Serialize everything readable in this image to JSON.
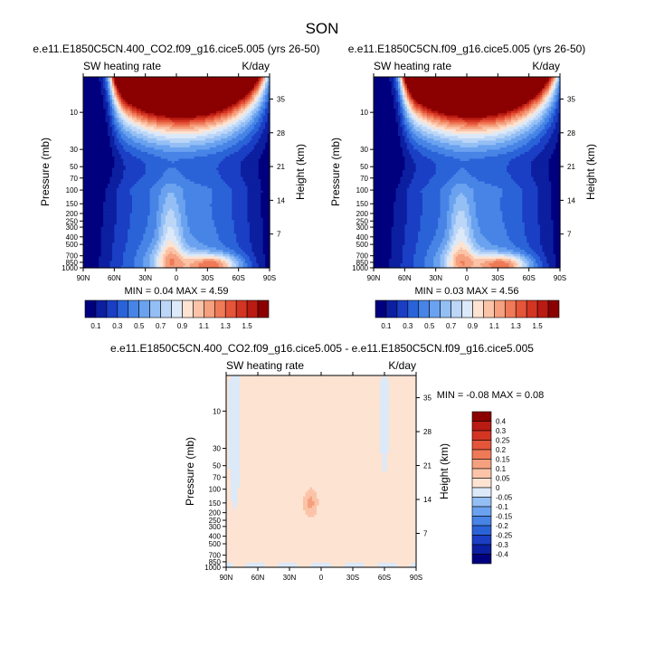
{
  "page_title": "SON",
  "palettes": {
    "sw": [
      "#00007f",
      "#0c1fa0",
      "#1a3ec4",
      "#2a63d8",
      "#4784e6",
      "#6aa2ef",
      "#94bff5",
      "#bcd6f8",
      "#dce9f8",
      "#fde3d2",
      "#fbc4a8",
      "#f5a07f",
      "#ef7a58",
      "#e4553a",
      "#d33522",
      "#ba1b12",
      "#8b0000"
    ],
    "diff": [
      "#00007f",
      "#0c1fa0",
      "#1a3ec4",
      "#2a63d8",
      "#4784e6",
      "#6aa2ef",
      "#94bff5",
      "#dce9f8",
      "#fde3d2",
      "#fbc4a8",
      "#f5a07f",
      "#ef7a58",
      "#e4553a",
      "#d33522",
      "#ba1b12",
      "#8b0000"
    ]
  },
  "chart_data": [
    {
      "id": "panel1",
      "type": "heatmap",
      "title": "e.e11.E1850C5CN.400_CO2.f09_g16.cice5.005 (yrs 26-50)",
      "left_label": "SW heating rate",
      "right_label": "K/day",
      "ylabel": "Pressure (mb)",
      "ylabel_right": "Height (km)",
      "xticks": [
        "90N",
        "60N",
        "30N",
        "0",
        "30S",
        "60S",
        "90S"
      ],
      "yticks": [
        "10",
        "30",
        "50",
        "70",
        "100",
        "150",
        "200",
        "250",
        "300",
        "400",
        "500",
        "700",
        "850",
        "1000"
      ],
      "height_ticks": [
        "35",
        "28",
        "21",
        "14",
        "7"
      ],
      "x_range": [
        -90,
        90
      ],
      "p_range": [
        1000,
        3.5
      ],
      "stats": "MIN =  0.04  MAX =  4.59",
      "colorbar_labels": [
        "0.1",
        "0.3",
        "0.5",
        "0.7",
        "0.9",
        "1.1",
        "1.3",
        "1.5"
      ],
      "colorbar_levels": [
        0.1,
        0.2,
        0.3,
        0.4,
        0.5,
        0.6,
        0.7,
        0.8,
        0.9,
        1.0,
        1.1,
        1.2,
        1.3,
        1.4,
        1.5,
        1.6
      ]
    },
    {
      "id": "panel2",
      "type": "heatmap",
      "title": "e.e11.E1850C5CN.f09_g16.cice5.005 (yrs 26-50)",
      "left_label": "SW heating rate",
      "right_label": "K/day",
      "ylabel": "Pressure (mb)",
      "ylabel_right": "Height (km)",
      "xticks": [
        "90N",
        "60N",
        "30N",
        "0",
        "30S",
        "60S",
        "90S"
      ],
      "yticks": [
        "10",
        "30",
        "50",
        "70",
        "100",
        "150",
        "200",
        "250",
        "300",
        "400",
        "500",
        "700",
        "850",
        "1000"
      ],
      "height_ticks": [
        "35",
        "28",
        "21",
        "14",
        "7"
      ],
      "x_range": [
        -90,
        90
      ],
      "p_range": [
        1000,
        3.5
      ],
      "stats": "MIN =  0.03  MAX =  4.56",
      "colorbar_labels": [
        "0.1",
        "0.3",
        "0.5",
        "0.7",
        "0.9",
        "1.1",
        "1.3",
        "1.5"
      ],
      "colorbar_levels": [
        0.1,
        0.2,
        0.3,
        0.4,
        0.5,
        0.6,
        0.7,
        0.8,
        0.9,
        1.0,
        1.1,
        1.2,
        1.3,
        1.4,
        1.5,
        1.6
      ]
    },
    {
      "id": "panel3",
      "type": "heatmap",
      "title": "e.e11.E1850C5CN.400_CO2.f09_g16.cice5.005 - e.e11.E1850C5CN.f09_g16.cice5.005",
      "left_label": "SW heating rate",
      "right_label": "K/day",
      "ylabel": "Pressure (mb)",
      "ylabel_right": "Height (km)",
      "xticks": [
        "90N",
        "60N",
        "30N",
        "0",
        "30S",
        "60S",
        "90S"
      ],
      "yticks": [
        "10",
        "30",
        "50",
        "70",
        "100",
        "150",
        "200",
        "250",
        "300",
        "400",
        "500",
        "700",
        "850",
        "1000"
      ],
      "height_ticks": [
        "35",
        "28",
        "21",
        "14",
        "7"
      ],
      "x_range": [
        -90,
        90
      ],
      "p_range": [
        1000,
        3.5
      ],
      "stats": "MIN =  -0.08  MAX =  0.08",
      "colorbar_labels": [
        "0.4",
        "0.3",
        "0.25",
        "0.2",
        "0.15",
        "0.1",
        "0.05",
        "0",
        "-0.05",
        "-0.1",
        "-0.15",
        "-0.2",
        "-0.25",
        "-0.3",
        "-0.4"
      ],
      "colorbar_levels": [
        -0.4,
        -0.3,
        -0.25,
        -0.2,
        -0.15,
        -0.1,
        -0.05,
        0,
        0.05,
        0.1,
        0.15,
        0.2,
        0.25,
        0.3,
        0.4
      ]
    }
  ]
}
